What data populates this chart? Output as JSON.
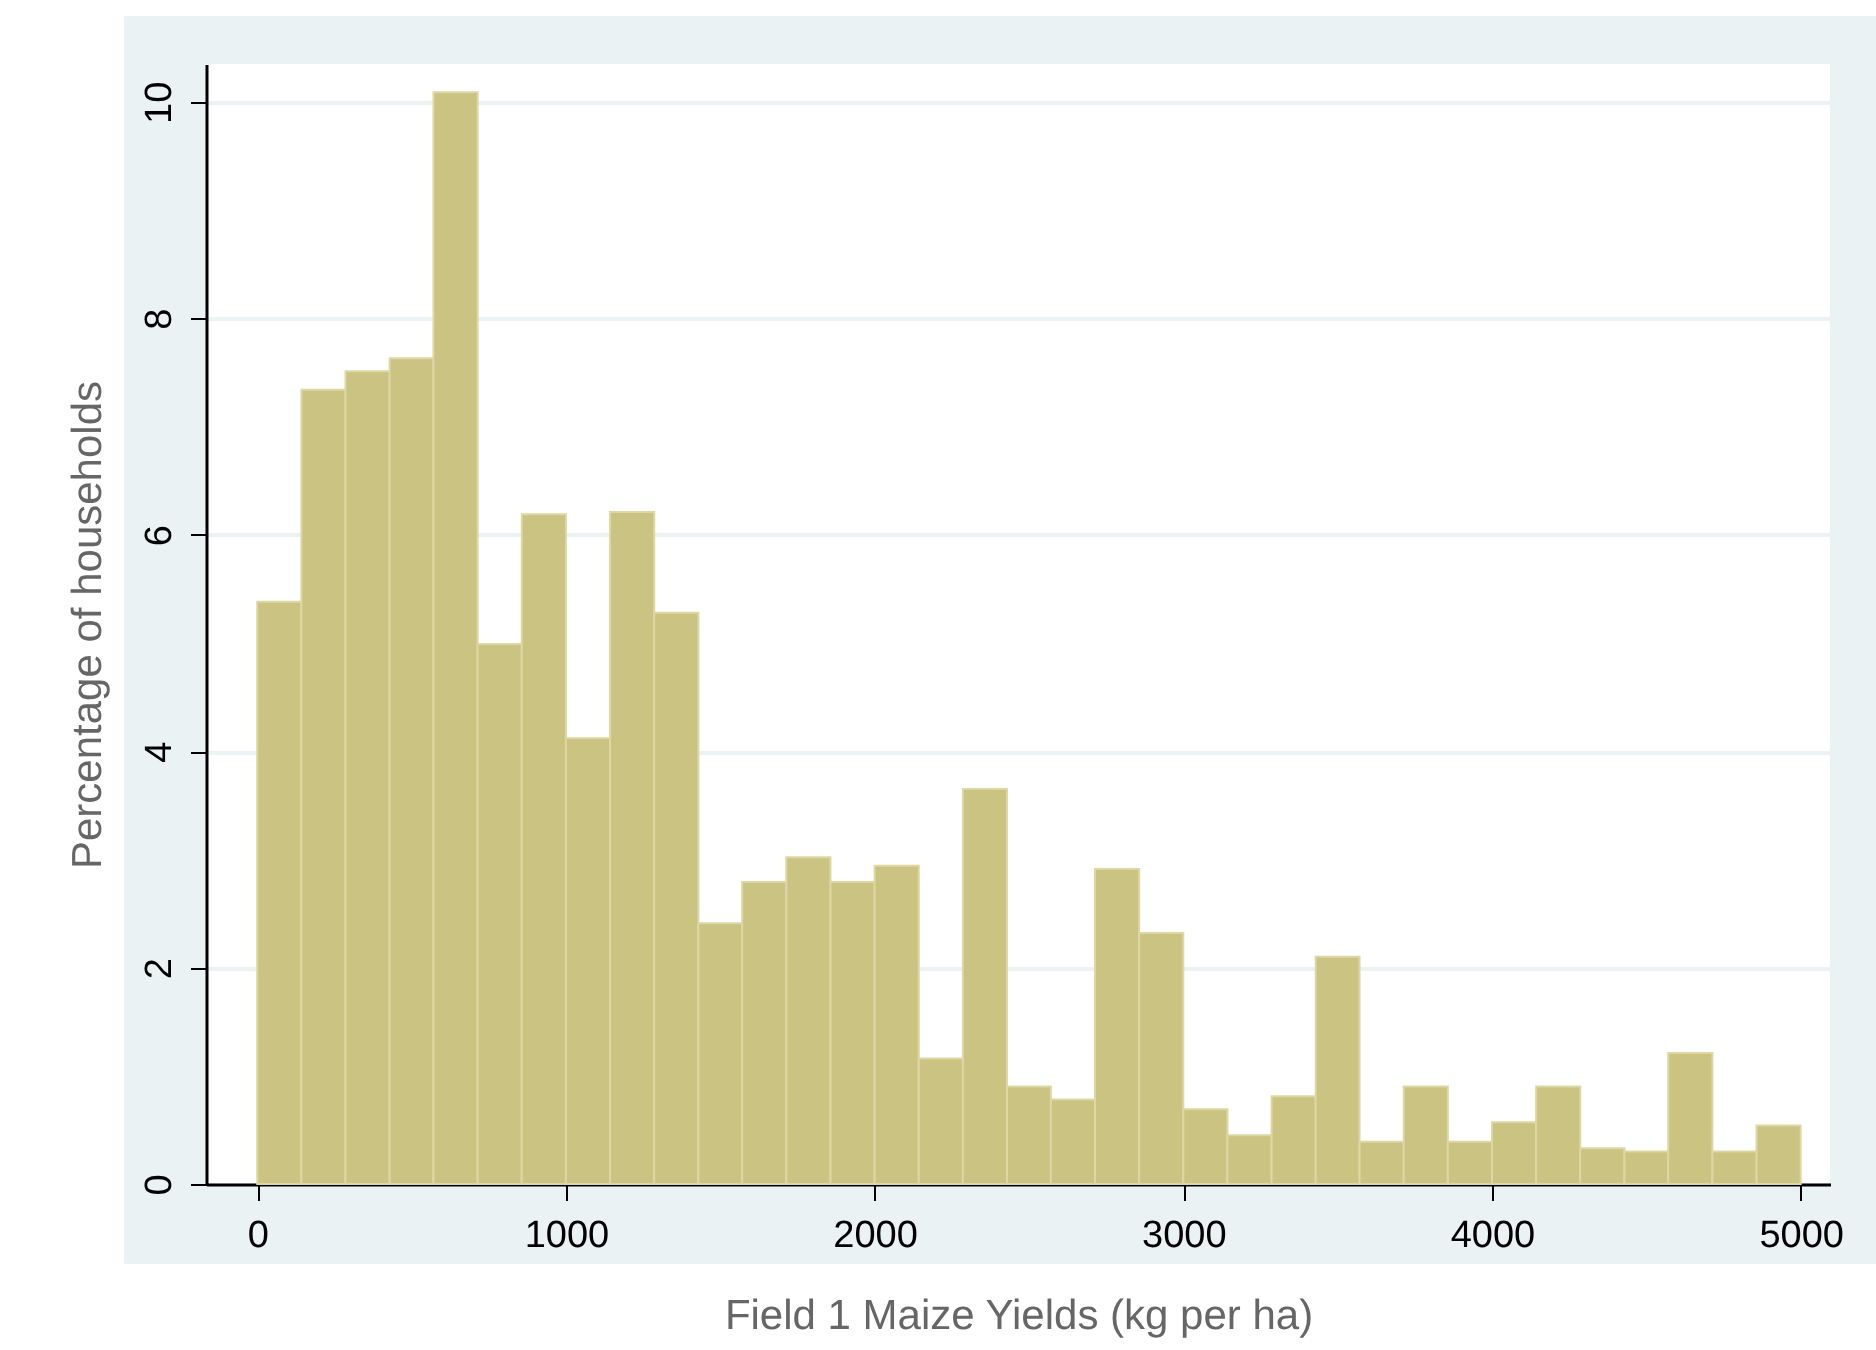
{
  "chart_data": {
    "type": "histogram",
    "xlabel": "Field 1 Maize Yields (kg per ha)",
    "ylabel": "Percentage of households",
    "bins": [
      0,
      143,
      286,
      429,
      571,
      714,
      857,
      1000,
      1143,
      1286,
      1429,
      1571,
      1714,
      1857,
      2000,
      2143,
      2286,
      2429,
      2571,
      2714,
      2857,
      3000,
      3143,
      3286,
      3429,
      3571,
      3714,
      3857,
      4000,
      4143,
      4286,
      4429,
      4571,
      4714,
      4857,
      5000
    ],
    "values": [
      5.38,
      7.34,
      7.51,
      7.63,
      10.09,
      4.99,
      6.19,
      4.12,
      6.21,
      5.28,
      2.41,
      2.79,
      3.02,
      2.79,
      2.94,
      1.16,
      3.65,
      0.9,
      0.78,
      2.91,
      2.32,
      0.69,
      0.45,
      0.81,
      2.1,
      0.39,
      0.9,
      0.39,
      0.57,
      0.9,
      0.33,
      0.3,
      1.21,
      0.3,
      0.54
    ],
    "color": "#cbc382",
    "xlim": [
      -166,
      5095
    ],
    "ylim": [
      0,
      10.35
    ],
    "xticks": [
      0,
      1000,
      2000,
      3000,
      4000,
      5000
    ],
    "yticks": [
      0,
      2,
      4,
      6,
      8,
      10
    ],
    "grid": "y"
  }
}
